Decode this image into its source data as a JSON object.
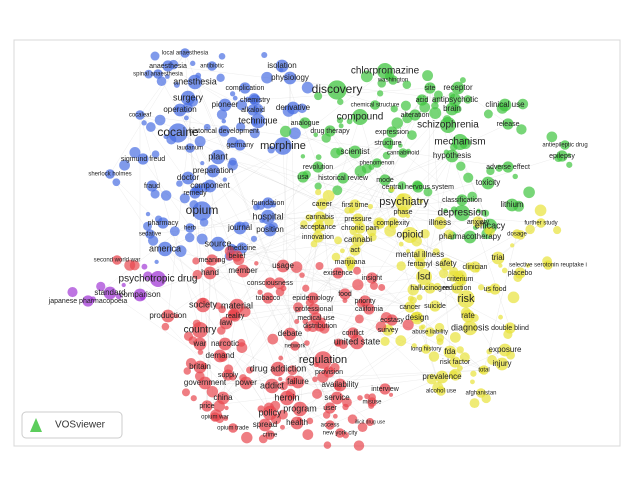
{
  "logo": "VOSviewer",
  "clusters": [
    {
      "color": "#4a6fe3",
      "terms": [
        "local anaesthesia",
        "anaesthesia",
        "antibiotic",
        "spinal anaesthesia",
        "anesthesia",
        "surgery",
        "operation",
        "pioneer",
        "complication",
        "isolation",
        "physiology",
        "chemistry",
        "alkaloid",
        "derivative",
        "cocaleaf",
        "technique",
        "historical development",
        "cocaine",
        "germany",
        "morphine",
        "laudanum",
        "sigmund freud",
        "plant",
        "doctor",
        "sherlock holmes",
        "preparation",
        "fraud",
        "component",
        "remedy",
        "opium",
        "foundation",
        "hospital",
        "pharmacy",
        "journal",
        "position",
        "sedative",
        "herb",
        "america",
        "source",
        "medicine"
      ]
    },
    {
      "color": "#3fc43f",
      "terms": [
        "discovery",
        "chlorpromazine",
        "washington",
        "site",
        "receptor",
        "acid",
        "antipsychotic",
        "brain",
        "clinical use",
        "chemical structure",
        "compound",
        "alteration",
        "analogue",
        "schizophrenia",
        "release",
        "drug therapy",
        "expression",
        "mechanism",
        "structure",
        "antiepileptic drug",
        "scientist",
        "cannabinoid",
        "hypothesis",
        "epilepsy",
        "revolution",
        "phenomenon",
        "adverse effect",
        "usa",
        "historical review",
        "mode",
        "central nervous system",
        "toxicity",
        "lithium",
        "classification",
        "depression",
        "efficacy",
        "pharmacotherapy"
      ]
    },
    {
      "color": "#e8e23a",
      "terms": [
        "career",
        "first time",
        "psychiatry",
        "phase",
        "cannabis",
        "pressure",
        "complexity",
        "illness",
        "acceptance",
        "chronic pain",
        "opioid",
        "innovation",
        "cannabi",
        "act",
        "anxiety",
        "mental illness",
        "fentanyl",
        "safety",
        "clinician",
        "marijuana",
        "trial",
        "placebo",
        "lsd",
        "criterium",
        "hallucinogen",
        "reduction",
        "us food",
        "risk",
        "cancer",
        "suicide",
        "design",
        "rate",
        "diagnosis",
        "double blind",
        "survey",
        "abuse liability",
        "exposure",
        "long history",
        "fda",
        "injury",
        "risk factor",
        "total",
        "prevalence",
        "alcohol use",
        "afghanistan",
        "selective serotonin reuptake i",
        "further study",
        "dosage"
      ]
    },
    {
      "color": "#e8474f",
      "terms": [
        "second world war",
        "meaning",
        "belief",
        "hand",
        "member",
        "usage",
        "consciousness",
        "existence",
        "insight",
        "society",
        "material",
        "tobacco",
        "epidemiology",
        "food",
        "priority",
        "production",
        "reality",
        "professional",
        "california",
        "country",
        "law",
        "medical use",
        "distribution",
        "ecstasy",
        "debate",
        "conflict",
        "united state",
        "war",
        "narcotic",
        "network",
        "demand",
        "regulation",
        "britain",
        "supply",
        "drug addiction",
        "provision",
        "government",
        "power",
        "addict",
        "failure",
        "availability",
        "heroin",
        "china",
        "service",
        "program",
        "user",
        "policy",
        "price",
        "opium war",
        "spread",
        "health",
        "access",
        "opium trade",
        "crime",
        "new york city",
        "misuse",
        "illicit drug use",
        "interview"
      ]
    },
    {
      "color": "#a23ad6",
      "terms": [
        "psychotropic drug",
        "standard",
        "comparison",
        "japanese pharmacopoeia"
      ]
    }
  ]
}
